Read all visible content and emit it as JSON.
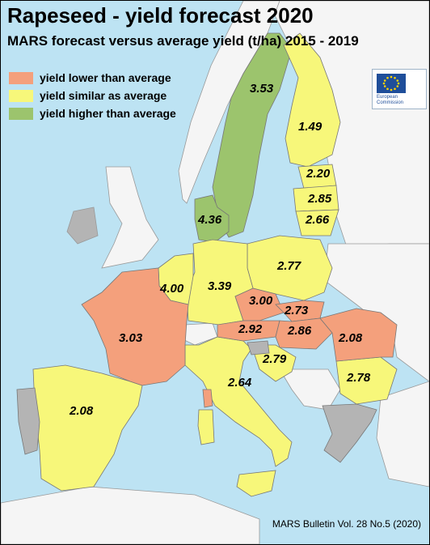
{
  "title": "Rapeseed - yield forecast 2020",
  "subtitle": "MARS forecast versus average yield (t/ha) 2015 - 2019",
  "legend": [
    {
      "label": "yield lower than average",
      "color": "#f4a07c"
    },
    {
      "label": "yield similar as average",
      "color": "#f7f77a"
    },
    {
      "label": "yield higher than average",
      "color": "#9cc46d"
    }
  ],
  "logo": {
    "line1": "European",
    "line2": "Commission"
  },
  "colors": {
    "sea": "#bde3f3",
    "non_eu": "#f5f5f5",
    "no_data": "#b4b4b4"
  },
  "regions": [
    {
      "id": "sweden",
      "value": "3.53",
      "category": "higher"
    },
    {
      "id": "finland",
      "value": "1.49",
      "category": "similar"
    },
    {
      "id": "estonia",
      "value": "2.20",
      "category": "similar"
    },
    {
      "id": "latvia",
      "value": "2.85",
      "category": "similar"
    },
    {
      "id": "lithuania",
      "value": "2.66",
      "category": "similar"
    },
    {
      "id": "denmark",
      "value": "4.36",
      "category": "higher"
    },
    {
      "id": "poland",
      "value": "2.77",
      "category": "similar"
    },
    {
      "id": "germany",
      "value": "3.39",
      "category": "similar"
    },
    {
      "id": "benelux",
      "value": "4.00",
      "category": "similar"
    },
    {
      "id": "czechia",
      "value": "3.00",
      "category": "lower"
    },
    {
      "id": "slovakia",
      "value": "2.73",
      "category": "lower"
    },
    {
      "id": "austria",
      "value": "2.92",
      "category": "lower"
    },
    {
      "id": "hungary",
      "value": "2.86",
      "category": "lower"
    },
    {
      "id": "romania",
      "value": "2.08",
      "category": "lower"
    },
    {
      "id": "france",
      "value": "3.03",
      "category": "lower"
    },
    {
      "id": "croatia",
      "value": "2.79",
      "category": "similar"
    },
    {
      "id": "bulgaria",
      "value": "2.78",
      "category": "similar"
    },
    {
      "id": "italy",
      "value": "2.64",
      "category": "similar"
    },
    {
      "id": "spain",
      "value": "2.08",
      "category": "similar"
    }
  ],
  "source": "MARS Bulletin Vol. 28 No.5 (2020)"
}
